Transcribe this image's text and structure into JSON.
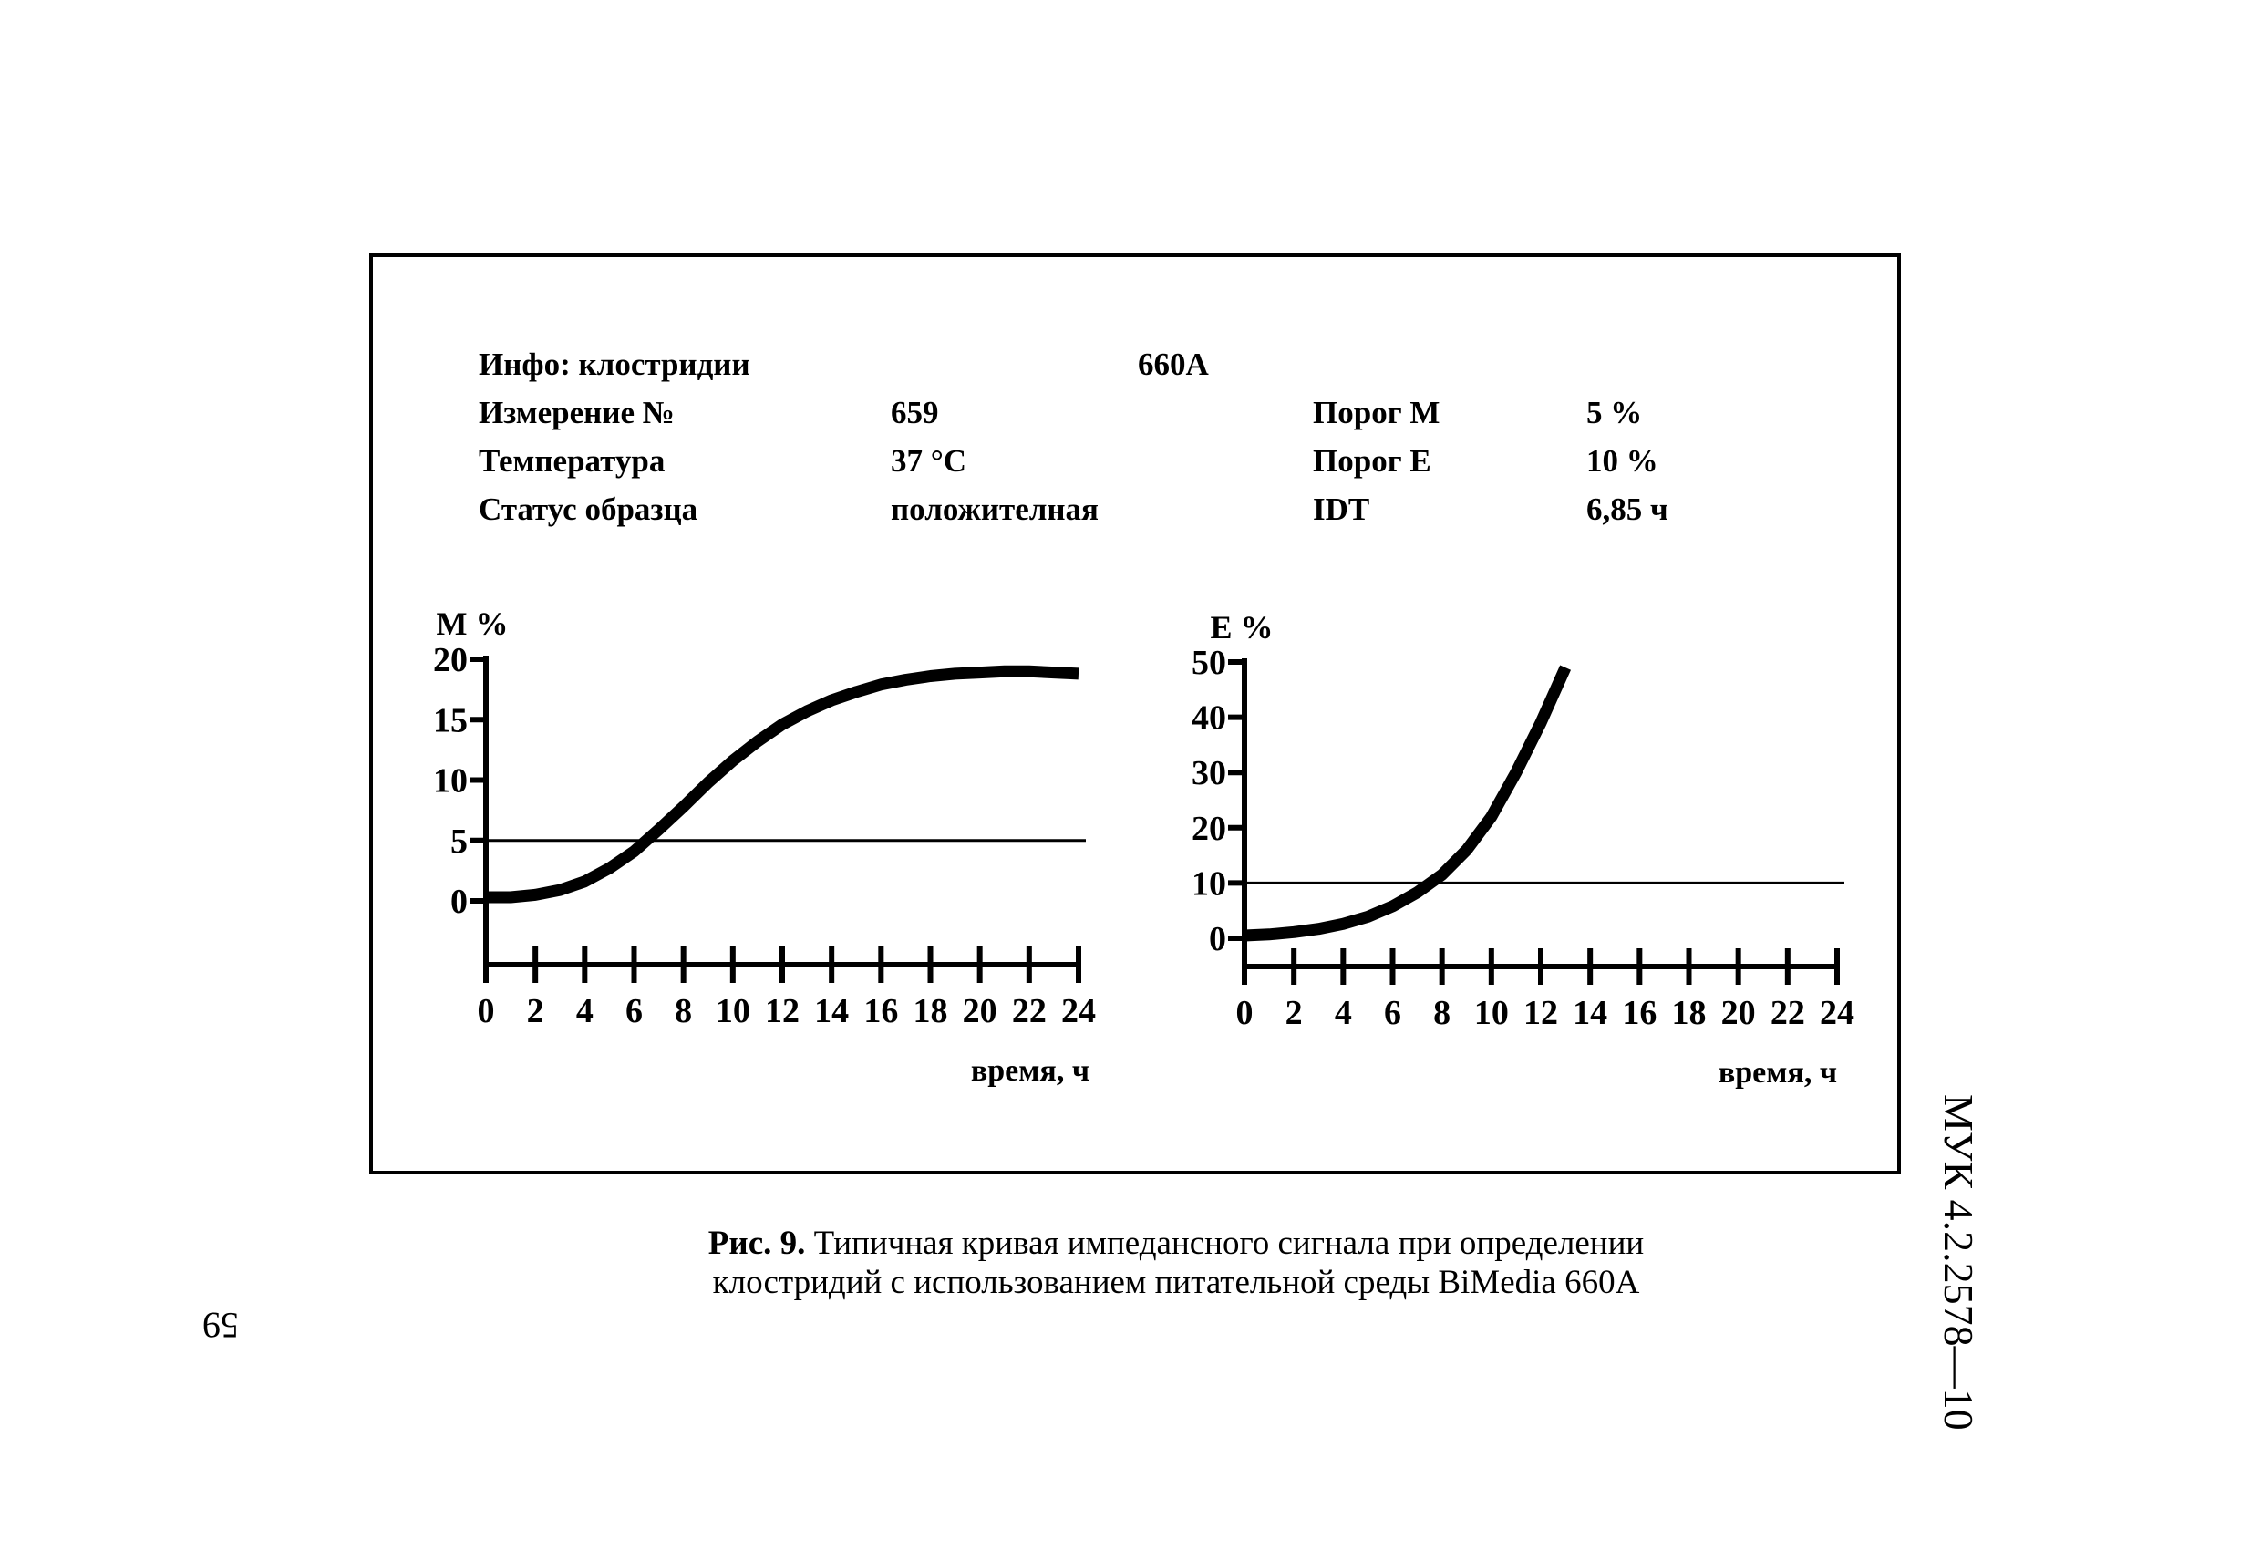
{
  "info": {
    "row1": {
      "label": "Инфо: клостридии",
      "value": "660A"
    },
    "row2": {
      "label": "Измерение №",
      "value": "659",
      "label2": "Порог M",
      "value2": "5 %"
    },
    "row3": {
      "label": "Температура",
      "value": "37 °C",
      "label2": "Порог E",
      "value2": "10 %"
    },
    "row4": {
      "label": "Статус образца",
      "value": "положителная",
      "label2": "IDT",
      "value2": "6,85 ч"
    }
  },
  "chart_data": [
    {
      "type": "line",
      "ylabel": "M %",
      "xlabel": "время, ч",
      "xlim": [
        0,
        24
      ],
      "ylim": [
        0,
        20
      ],
      "x_ticks": [
        "0",
        "2",
        "4",
        "6",
        "8",
        "10",
        "12",
        "14",
        "16",
        "18",
        "20",
        "22",
        "24"
      ],
      "y_ticks": [
        "0",
        "5",
        "10",
        "15",
        "20"
      ],
      "threshold": 5,
      "series": [
        {
          "x": [
            0,
            1,
            2,
            3,
            4,
            5,
            6,
            7,
            8,
            9,
            10,
            11,
            12,
            13,
            14,
            15,
            16,
            17,
            18,
            19,
            20,
            21,
            22,
            23,
            24
          ],
          "y": [
            0.3,
            0.3,
            0.5,
            0.9,
            1.6,
            2.7,
            4.1,
            5.9,
            7.8,
            9.8,
            11.6,
            13.2,
            14.6,
            15.7,
            16.6,
            17.3,
            17.9,
            18.3,
            18.6,
            18.8,
            18.9,
            19.0,
            19.0,
            18.9,
            18.8
          ]
        }
      ]
    },
    {
      "type": "line",
      "ylabel": "E %",
      "xlabel": "время, ч",
      "xlim": [
        0,
        24
      ],
      "ylim": [
        0,
        50
      ],
      "x_ticks": [
        "0",
        "2",
        "4",
        "6",
        "8",
        "10",
        "12",
        "14",
        "16",
        "18",
        "20",
        "22",
        "24"
      ],
      "y_ticks": [
        "0",
        "10",
        "20",
        "30",
        "40",
        "50"
      ],
      "threshold": 10,
      "series": [
        {
          "x": [
            0,
            1,
            2,
            3,
            4,
            5,
            6,
            7,
            8,
            9,
            10,
            11,
            12,
            13
          ],
          "y": [
            0.5,
            0.7,
            1.1,
            1.7,
            2.6,
            3.9,
            5.8,
            8.3,
            11.5,
            16,
            22,
            30,
            39,
            49
          ]
        }
      ]
    }
  ],
  "caption": {
    "label": "Рис. 9.",
    "line1": "Типичная кривая импедансного сигнала при определении",
    "line2": "клостридий с использованием питательной среды BiMedia 660A"
  },
  "page_number": "59",
  "doc_code": "МУК 4.2.2578—10"
}
